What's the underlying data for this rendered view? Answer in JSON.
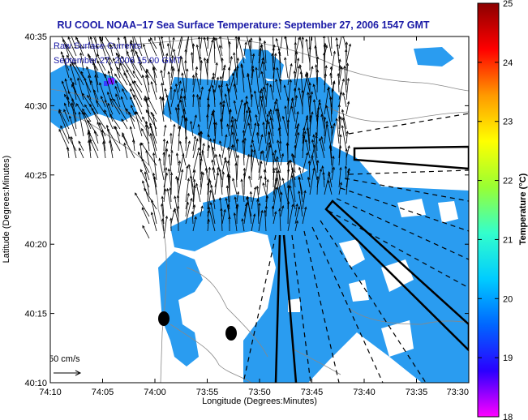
{
  "title": "RU COOL  NOAA−17  Sea Surface Temperature:  September 27, 2006 1547 GMT",
  "legend_lines": [
    "Raw Surface Currents",
    "September 27, 2006 15:00 GMT"
  ],
  "xlabel": "Longitude (Degrees:Minutes)",
  "ylabel": "Latitude (Degrees:Minutes)",
  "colorbar_label": "Temperature (°C)",
  "scale_label": "50 cm/s",
  "colors": {
    "land": "#ffffff",
    "sst": "#2a9cf0",
    "title": "#1a1aa6"
  },
  "map": {
    "x_ticks": [
      "74:10",
      "74:05",
      "74:00",
      "73:55",
      "73:50",
      "73:45",
      "73:40",
      "73:35",
      "73:30"
    ],
    "y_ticks": [
      "40:35",
      "40:30",
      "40:25",
      "40:20",
      "40:15",
      "40:10"
    ],
    "x_range_deg": [
      -74.1667,
      -73.5
    ],
    "y_range_deg": [
      40.1667,
      40.5833
    ]
  },
  "colorbar": {
    "ticks": [
      "25",
      "24",
      "23",
      "22",
      "21",
      "20",
      "19",
      "18"
    ],
    "range": [
      18,
      25
    ],
    "stops": [
      "#ff00ff",
      "#2a00ff",
      "#0066ff",
      "#00ccff",
      "#33ffcc",
      "#99ff33",
      "#ffff00",
      "#ff9900",
      "#ff0000",
      "#8b0000"
    ]
  }
}
